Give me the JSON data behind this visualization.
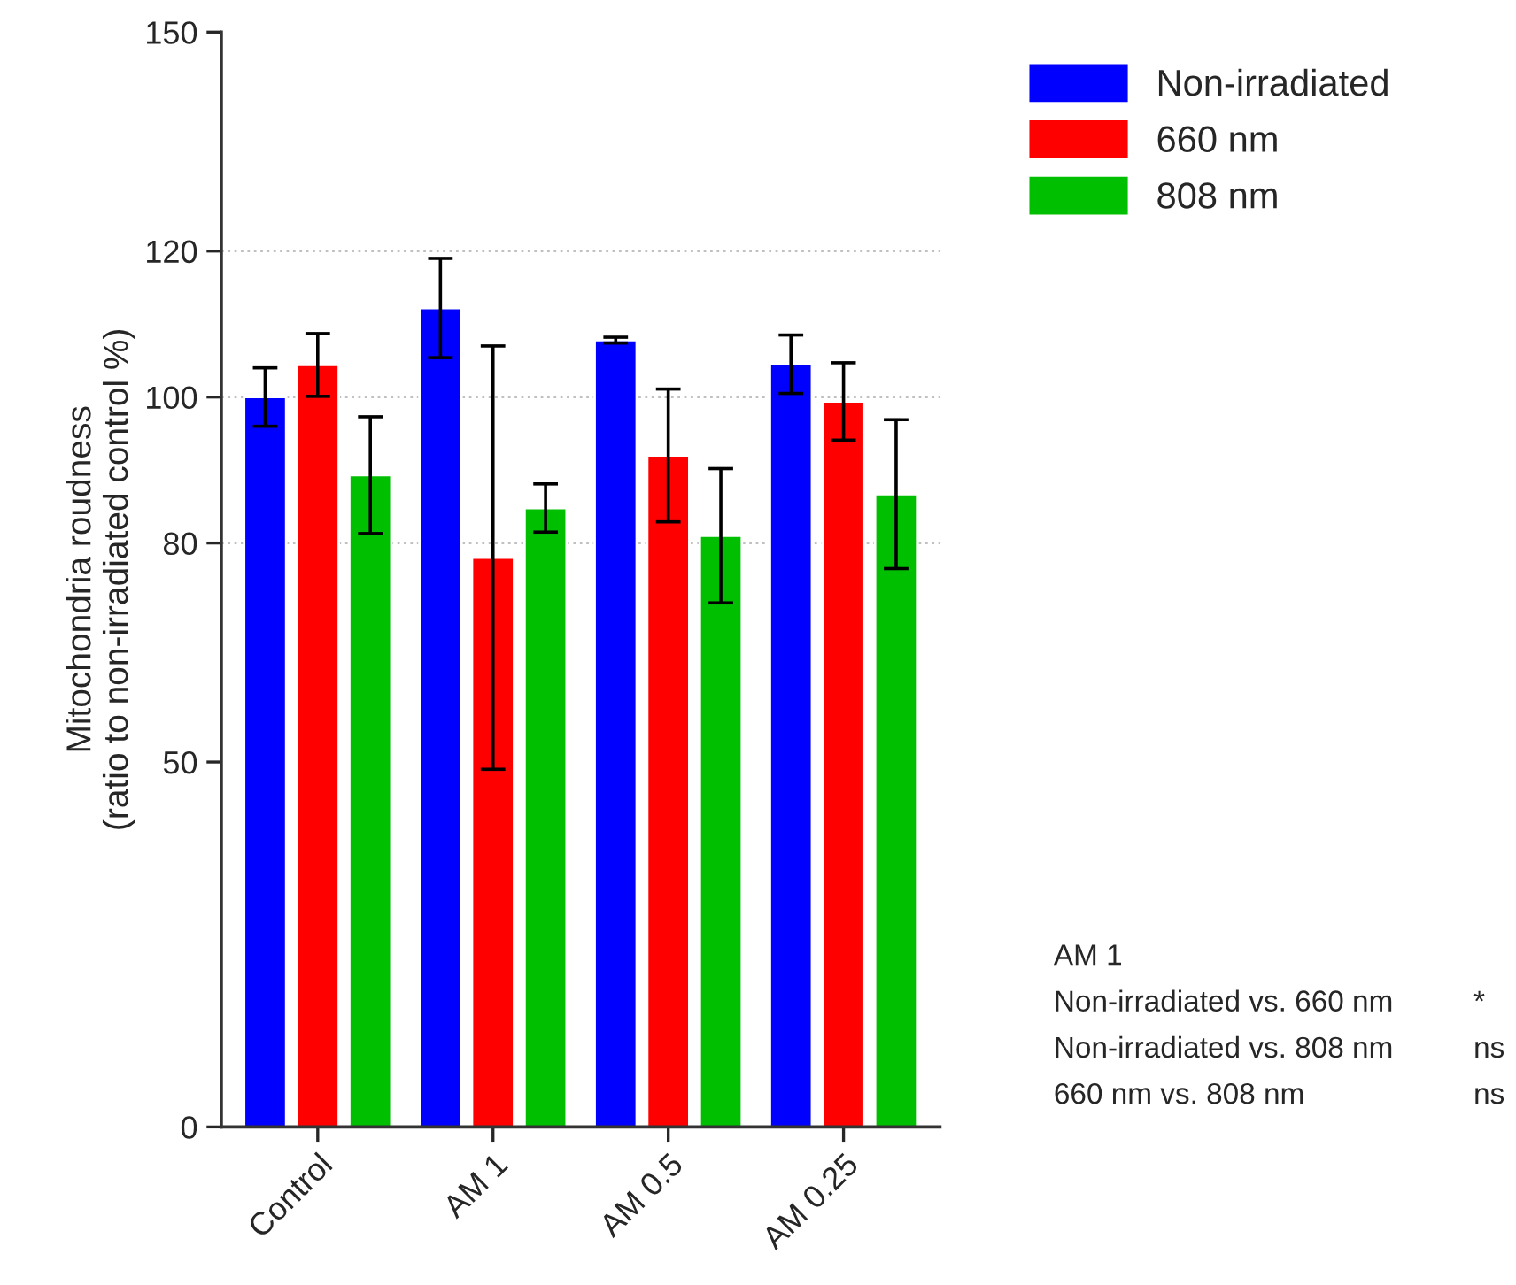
{
  "chart_data": {
    "type": "bar",
    "ylabel": "Mitochondria roudness\n(ratio to non-irradiated control %)",
    "categories": [
      "Control",
      "AM 1",
      "AM 0.5",
      "AM 0.25"
    ],
    "series": [
      {
        "name": "Non-irradiated",
        "color": "#0000ff",
        "values": [
          100,
          112.2,
          107.8,
          104.5
        ],
        "errors": [
          4,
          6.8,
          0.4,
          4
        ]
      },
      {
        "name": "660 nm",
        "color": "#ff0000",
        "values": [
          104.4,
          78,
          92,
          99.4
        ],
        "errors": [
          4.3,
          29,
          9.1,
          5.3
        ]
      },
      {
        "name": "808 nm",
        "color": "#00bf00",
        "values": [
          89.3,
          84.8,
          81,
          86.7
        ],
        "errors": [
          8,
          3.3,
          9.2,
          10.2
        ]
      }
    ],
    "ylim": [
      0,
      150
    ],
    "yticks": [
      0,
      50,
      80,
      100,
      120,
      150
    ],
    "ref_lines": [
      {
        "axis": "y",
        "value": 80,
        "color": "#c0c0c0",
        "line_style": "dotted"
      },
      {
        "axis": "y",
        "value": 100,
        "color": "#c0c0c0",
        "line_style": "dotted"
      },
      {
        "axis": "y",
        "value": 120,
        "color": "#c0c0c0",
        "line_style": "dotted"
      }
    ],
    "legend": "top right",
    "annotations": [
      "AM 1",
      "Non-irradiated vs. 660 nm",
      "*",
      "Non-irradiated vs. 808 nm",
      "ns",
      "660 nm vs. 808 nm",
      "ns"
    ]
  }
}
